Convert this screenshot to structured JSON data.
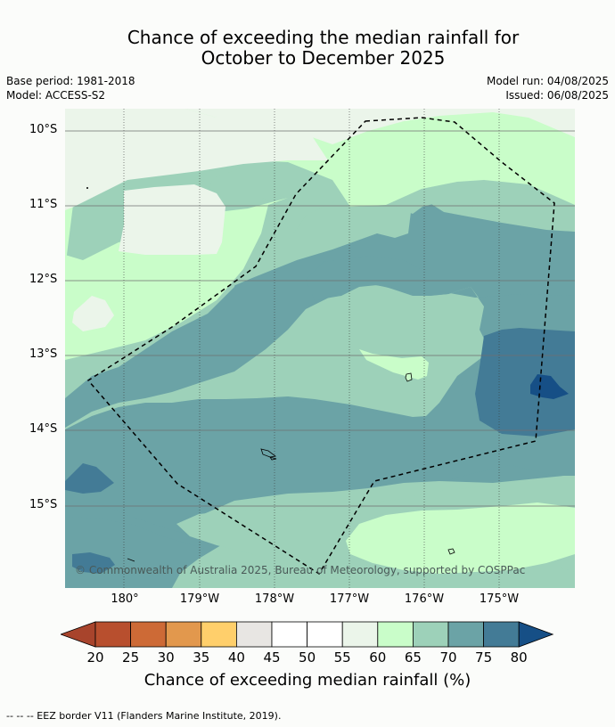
{
  "title": {
    "line1": "Chance of exceeding the median rainfall for",
    "line2": "October to December 2025"
  },
  "meta": {
    "base_period": "Base period: 1981-2018",
    "model": "Model: ACCESS-S2",
    "model_run": "Model run: 04/08/2025",
    "issued": "Issued: 06/08/2025"
  },
  "map": {
    "copyright": "© Commonwealth of Australia 2025, Bureau of Meteorology, supported by COSPPac",
    "lat_labels": [
      "10°S",
      "11°S",
      "12°S",
      "13°S",
      "14°S",
      "15°S"
    ],
    "lon_labels": [
      "180°",
      "179°W",
      "178°W",
      "177°W",
      "176°W",
      "175°W"
    ]
  },
  "legend": {
    "ticks": [
      "20",
      "25",
      "30",
      "35",
      "40",
      "45",
      "50",
      "55",
      "60",
      "65",
      "70",
      "75",
      "80"
    ],
    "colors": [
      "#a8442c",
      "#b84f2e",
      "#cd6a36",
      "#e2984d",
      "#ffcf6b",
      "#e8e6e3",
      "#ffffff",
      "#ffffff",
      "#ebf5ea",
      "#c9fdc9",
      "#9dd1b9",
      "#6ba3a6",
      "#437b96",
      "#164f86"
    ],
    "title": "Chance of exceeding median rainfall (%)"
  },
  "footer": "--  --  -- EEZ border V11 (Flanders Marine Institute, 2019)."
}
